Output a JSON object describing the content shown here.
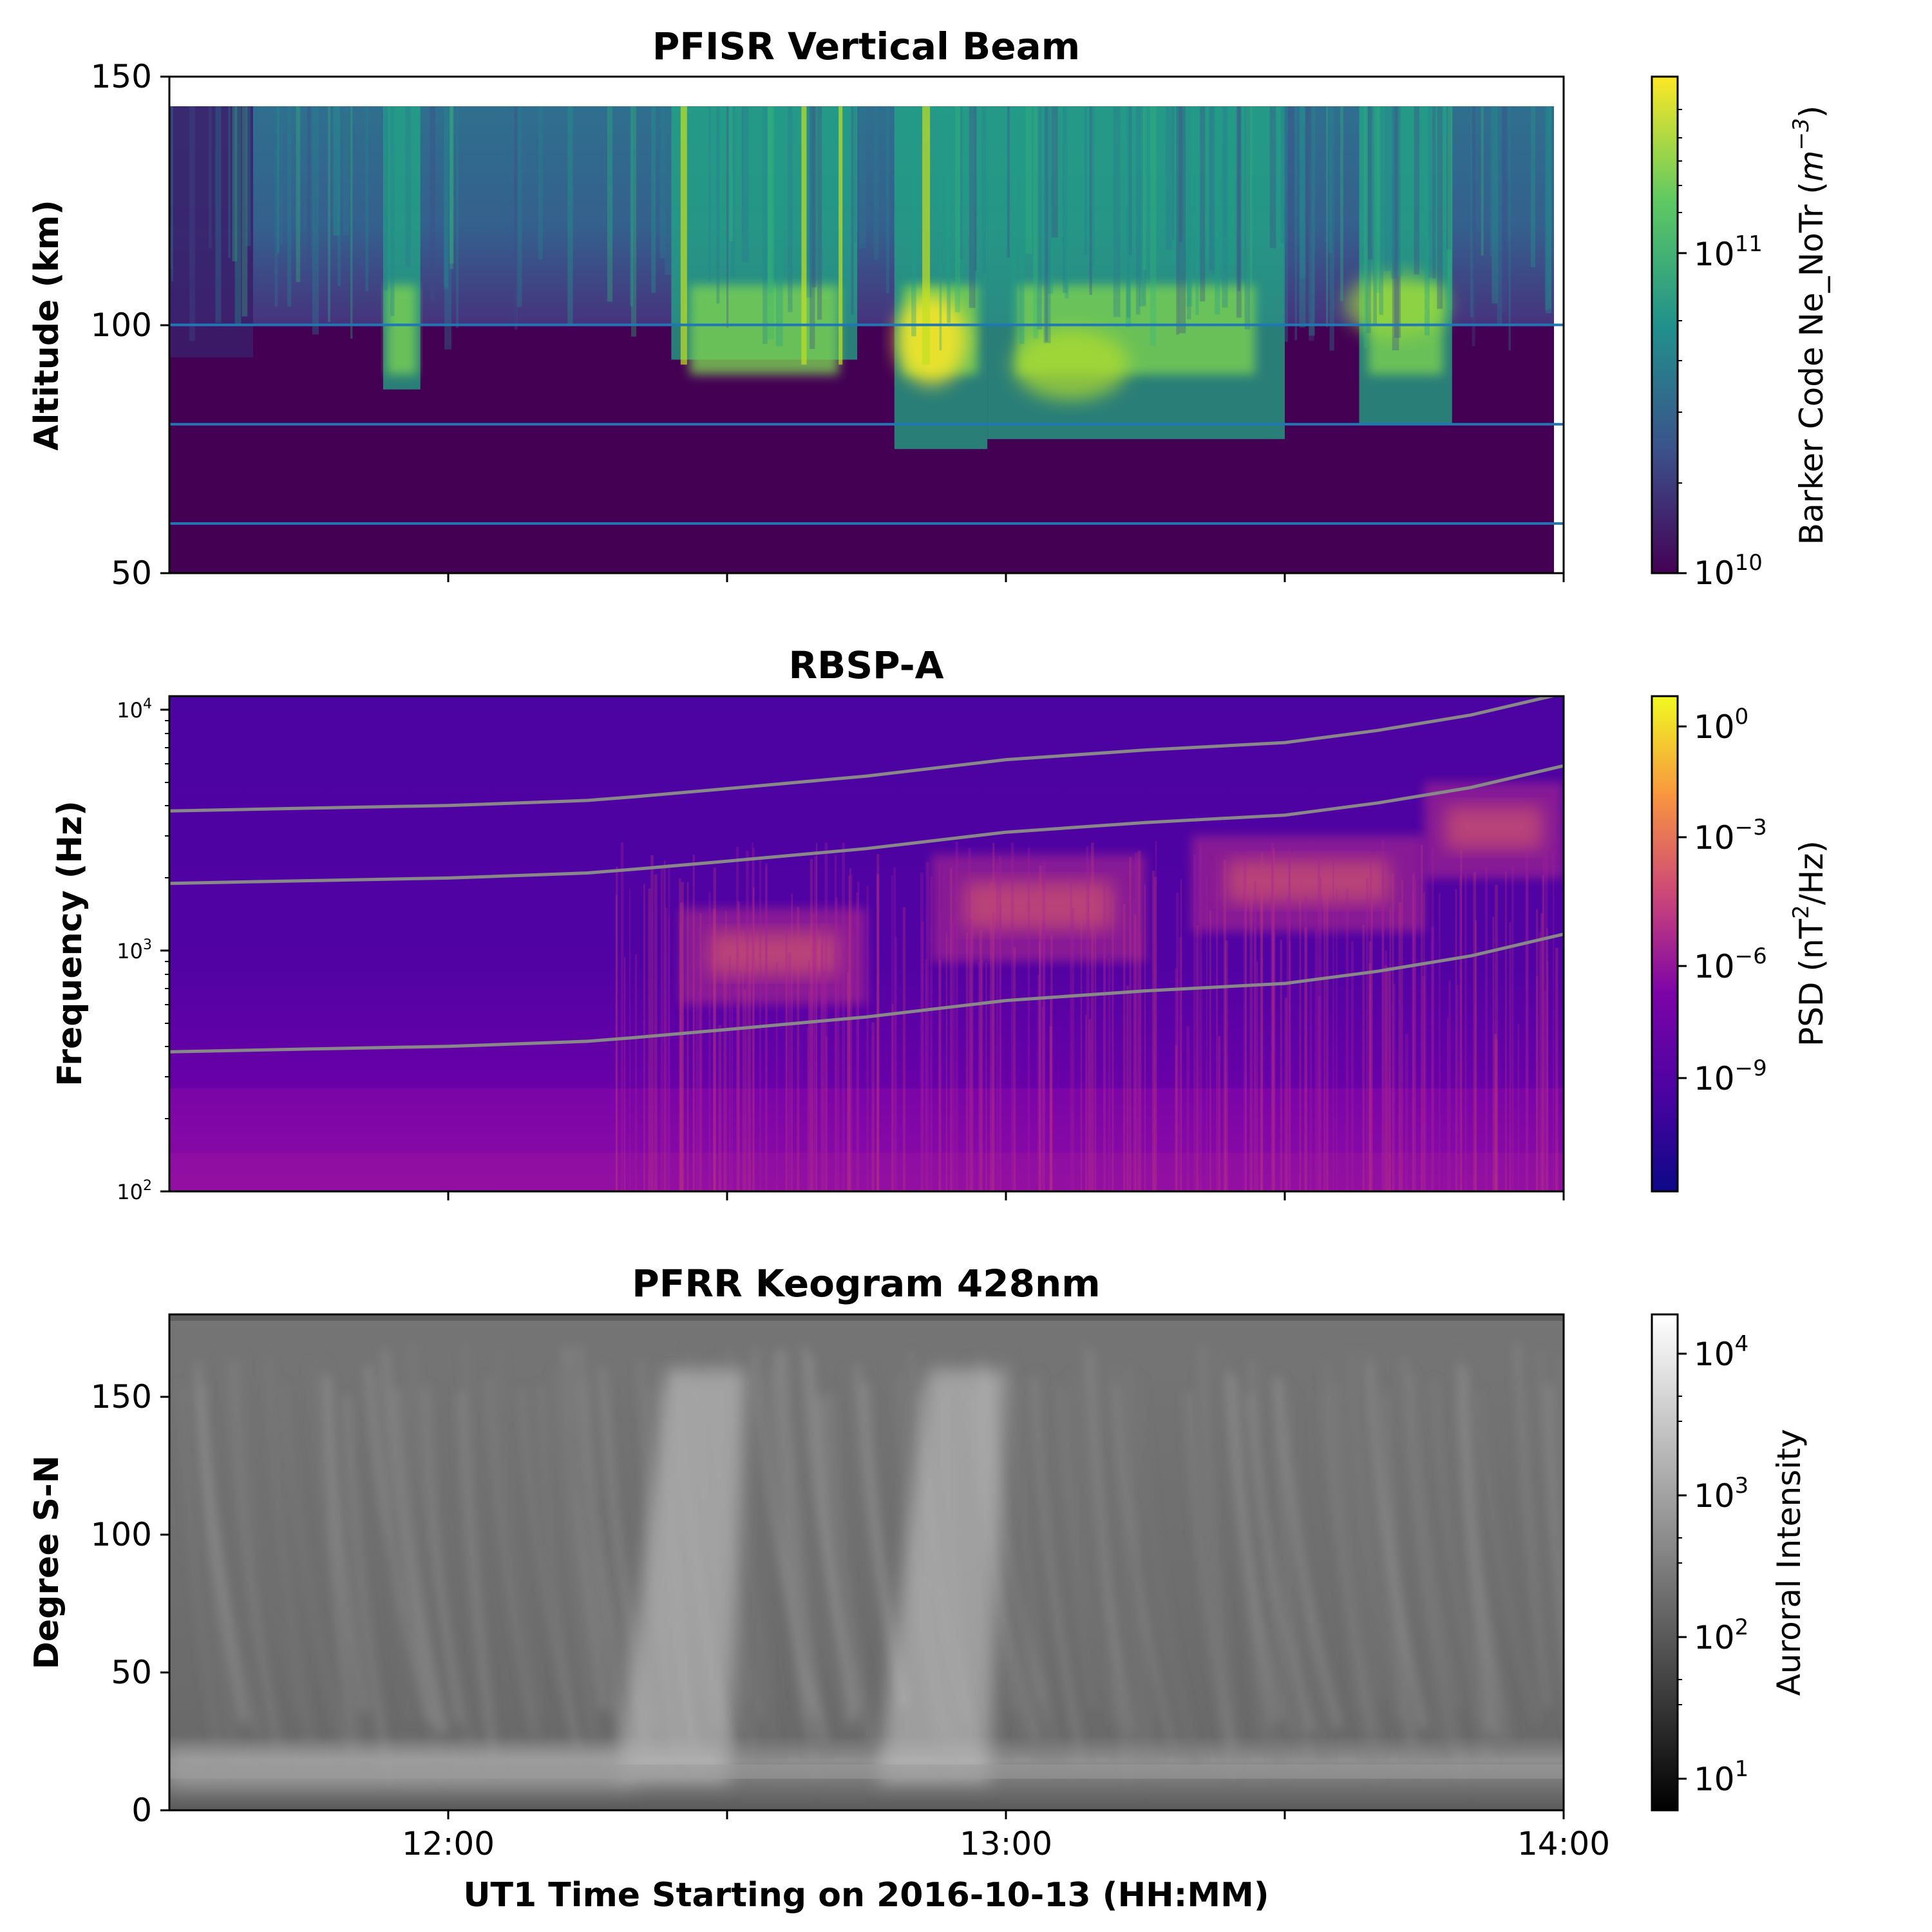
{
  "figure": {
    "xlabel": "UT1 Time Starting on 2016-10-13 (HH:MM)",
    "xticks": [
      "12:00",
      "13:00",
      "14:00"
    ]
  },
  "colors": {
    "hline": "#1f77b4",
    "gyro_line": "#888888",
    "viridis": [
      "#440154",
      "#3b528b",
      "#21918c",
      "#5ec962",
      "#fde725"
    ],
    "plasma": [
      "#0d0887",
      "#4b03a1",
      "#7d03a8",
      "#cc4778",
      "#f89540",
      "#f0f921"
    ],
    "gray": [
      "#000000",
      "#ffffff"
    ]
  },
  "chart_data": [
    {
      "type": "heatmap",
      "title": "PFISR Vertical Beam",
      "ylabel": "Altitude (km)",
      "x_range": [
        "11:30",
        "14:00"
      ],
      "ylim": [
        50,
        150
      ],
      "yticks": [
        "50",
        "100",
        "150"
      ],
      "colorbar": {
        "label_main": "Barker Code Ne_NoTr (",
        "label_unit": "m",
        "label_exp": "−3",
        "label_close": ")",
        "scale": "log",
        "range": [
          10000000000.0,
          300000000000.0
        ],
        "ticks": [
          {
            "base": "10",
            "exp": "11"
          },
          {
            "base": "10",
            "exp": "10"
          }
        ]
      },
      "horizontal_lines_km": [
        100,
        80,
        60
      ],
      "data_altitude_top_km": 144,
      "enhancement_events": [
        {
          "start": "11:53",
          "end": "11:57",
          "floor_km": 87
        },
        {
          "start": "12:24",
          "end": "12:44",
          "floor_km": 93
        },
        {
          "start": "12:48",
          "end": "12:58",
          "floor_km": 75
        },
        {
          "start": "12:58",
          "end": "13:30",
          "floor_km": 77
        },
        {
          "start": "13:38",
          "end": "13:48",
          "floor_km": 80
        }
      ]
    },
    {
      "type": "heatmap",
      "title": "RBSP-A",
      "ylabel": "Frequency (Hz)",
      "x_range": [
        "11:30",
        "14:00"
      ],
      "ylim": [
        100,
        12000
      ],
      "y_scale": "log",
      "yticks": [
        {
          "base": "10",
          "exp": "2"
        },
        {
          "base": "10",
          "exp": "3"
        },
        {
          "base": "10",
          "exp": "4"
        }
      ],
      "colorbar": {
        "label_main": "PSD (nT",
        "label_exp": "2",
        "label_close": "/Hz)",
        "scale": "log",
        "range": [
          1e-12,
          10
        ],
        "ticks": [
          {
            "base": "10",
            "exp": "0"
          },
          {
            "base": "10",
            "exp": "−3"
          },
          {
            "base": "10",
            "exp": "−6"
          },
          {
            "base": "10",
            "exp": "−9"
          }
        ]
      },
      "lines": [
        {
          "times": [
            "11:30",
            "11:45",
            "12:00",
            "12:15",
            "12:20",
            "12:30",
            "12:45",
            "13:00",
            "13:15",
            "13:30",
            "13:40",
            "13:50",
            "14:00"
          ],
          "values": [
            3800,
            3900,
            4000,
            4200,
            4350,
            4700,
            5300,
            6200,
            6800,
            7300,
            8200,
            9500,
            11700
          ]
        },
        {
          "times": [
            "11:30",
            "11:45",
            "12:00",
            "12:15",
            "12:20",
            "12:30",
            "12:45",
            "13:00",
            "13:15",
            "13:30",
            "13:40",
            "13:50",
            "14:00"
          ],
          "values": [
            1900,
            1950,
            2000,
            2100,
            2175,
            2350,
            2650,
            3100,
            3400,
            3650,
            4100,
            4750,
            5850
          ]
        },
        {
          "times": [
            "11:30",
            "11:45",
            "12:00",
            "12:15",
            "12:20",
            "12:30",
            "12:45",
            "13:00",
            "13:15",
            "13:30",
            "13:40",
            "13:50",
            "14:00"
          ],
          "values": [
            380,
            390,
            400,
            420,
            435,
            470,
            530,
            620,
            680,
            730,
            820,
            950,
            1170
          ]
        }
      ],
      "chorus_bursts": [
        {
          "start": "12:25",
          "end": "12:45",
          "f_low": 600,
          "f_high": 1500
        },
        {
          "start": "12:52",
          "end": "13:15",
          "f_low": 900,
          "f_high": 2500
        },
        {
          "start": "13:20",
          "end": "13:45",
          "f_low": 1200,
          "f_high": 3000
        },
        {
          "start": "13:45",
          "end": "14:00",
          "f_low": 2000,
          "f_high": 5000
        }
      ]
    },
    {
      "type": "heatmap",
      "title": "PFRR Keogram 428nm",
      "ylabel": "Degree S-N",
      "x_range": [
        "11:30",
        "14:00"
      ],
      "ylim": [
        0,
        180
      ],
      "yticks": [
        "0",
        "50",
        "100",
        "150"
      ],
      "colorbar": {
        "label": "Auroral Intensity",
        "scale": "log",
        "range": [
          6,
          20000
        ],
        "ticks": [
          {
            "base": "10",
            "exp": "4"
          },
          {
            "base": "10",
            "exp": "3"
          },
          {
            "base": "10",
            "exp": "2"
          },
          {
            "base": "10",
            "exp": "1"
          }
        ]
      },
      "bright_arcs": [
        {
          "start": "12:20",
          "end": "12:32"
        },
        {
          "start": "12:48",
          "end": "13:00"
        }
      ]
    }
  ]
}
